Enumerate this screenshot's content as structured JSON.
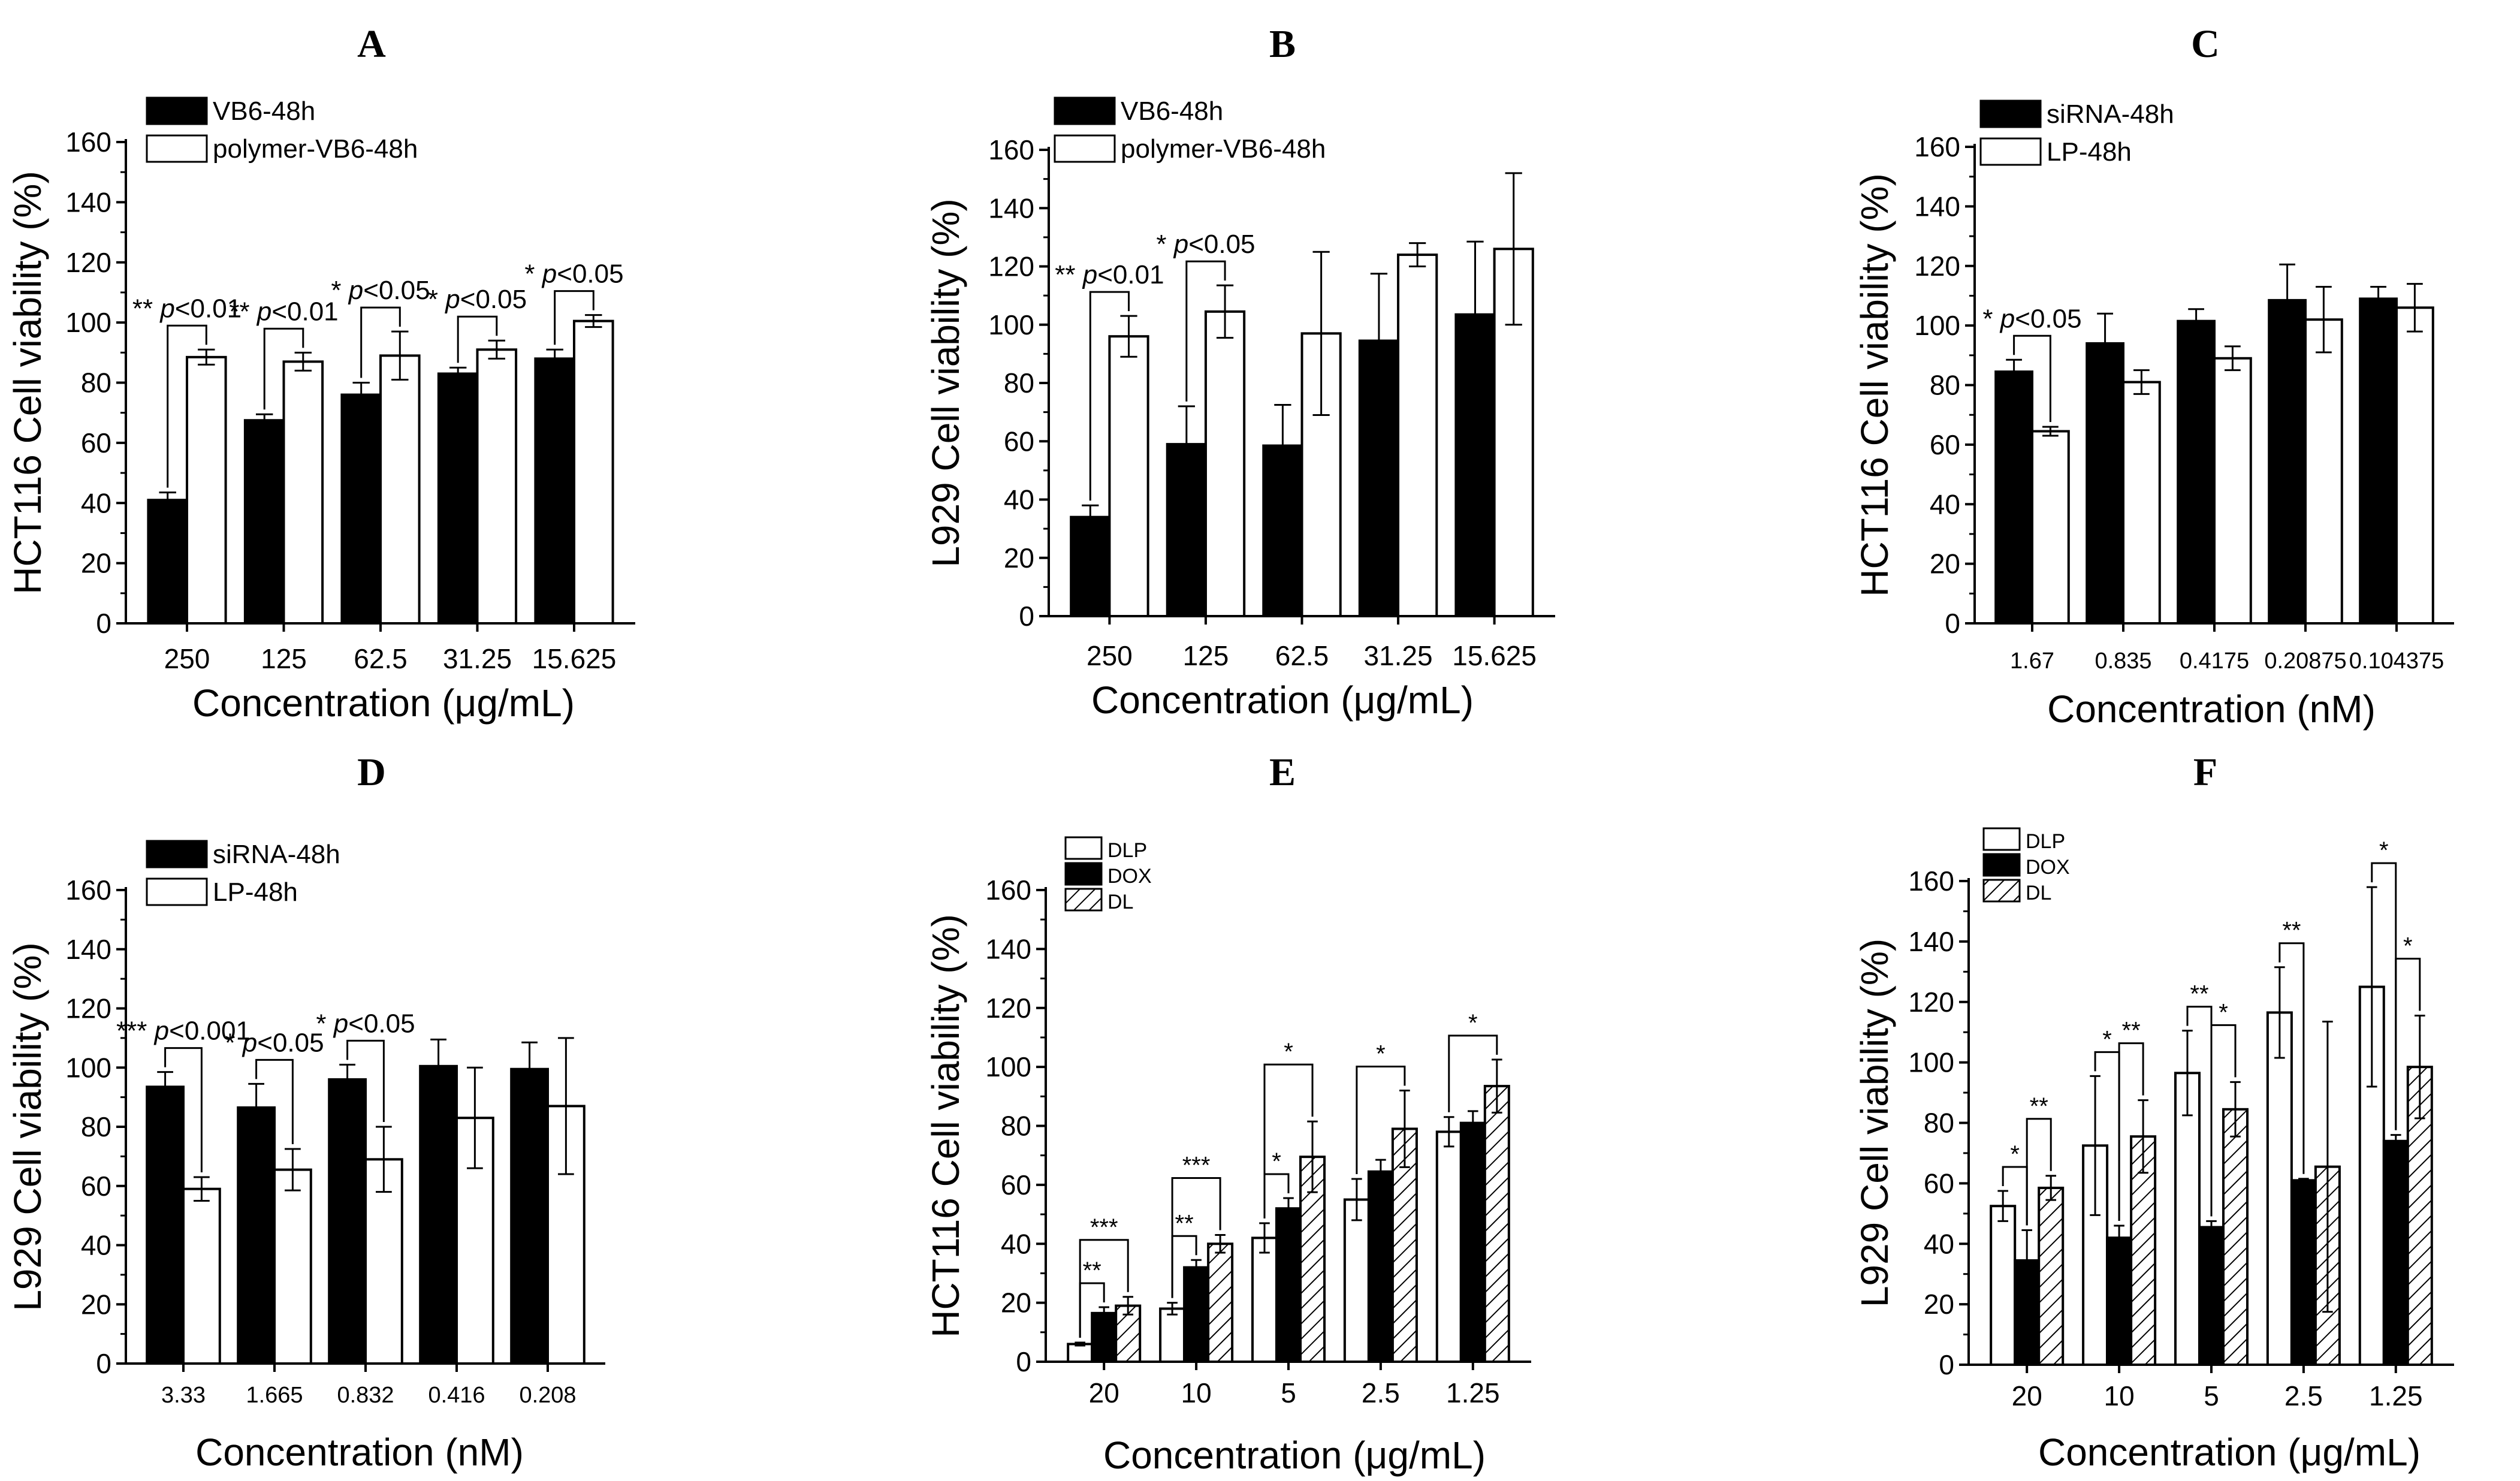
{
  "colors": {
    "black": "#000000",
    "white": "#ffffff",
    "background": "#ffffff"
  },
  "chart_data": [
    {
      "panel": "A",
      "type": "bar",
      "xlabel": "Concentration (μg/mL)",
      "ylabel": "HCT116 Cell viability (%)",
      "ylim": [
        0,
        160
      ],
      "yticks": [
        "0",
        "20",
        "40",
        "60",
        "80",
        "100",
        "120",
        "140",
        "160"
      ],
      "categories": [
        "250",
        "125",
        "62.5",
        "31.25",
        "15.625"
      ],
      "series": [
        {
          "name": "VB6-48h",
          "fill": "black",
          "values": [
            41,
            67.5,
            76,
            83,
            88
          ],
          "errors": [
            2.5,
            2,
            4,
            2,
            3
          ]
        },
        {
          "name": "polymer-VB6-48h",
          "fill": "white",
          "values": [
            88.5,
            87,
            89,
            91,
            100.5
          ],
          "errors": [
            2.5,
            3,
            8,
            3,
            2
          ]
        }
      ],
      "significance": [
        {
          "label": "** p<0.01",
          "stars": "**",
          "p": "p<0.01",
          "category": 0
        },
        {
          "label": "** p<0.01",
          "stars": "**",
          "p": "p<0.01",
          "category": 1
        },
        {
          "label": "* p<0.05",
          "stars": "*",
          "p": "p<0.05",
          "category": 2
        },
        {
          "label": "* p<0.05",
          "stars": "*",
          "p": "p<0.05",
          "category": 3
        },
        {
          "label": "* p<0.05",
          "stars": "*",
          "p": "p<0.05",
          "category": 4
        }
      ]
    },
    {
      "panel": "B",
      "type": "bar",
      "xlabel": "Concentration (μg/mL)",
      "ylabel": "L929 Cell viability (%)",
      "ylim": [
        0,
        160
      ],
      "yticks": [
        "0",
        "20",
        "40",
        "60",
        "80",
        "100",
        "120",
        "140",
        "160"
      ],
      "categories": [
        "250",
        "125",
        "62.5",
        "31.25",
        "15.625"
      ],
      "series": [
        {
          "name": "VB6-48h",
          "fill": "black",
          "values": [
            34,
            59,
            58.5,
            94.5,
            103.5
          ],
          "errors": [
            4,
            13,
            14,
            23,
            25
          ]
        },
        {
          "name": "polymer-VB6-48h",
          "fill": "white",
          "values": [
            96,
            104.5,
            97,
            124,
            126
          ],
          "errors": [
            7,
            9,
            28,
            4,
            26
          ]
        }
      ],
      "significance": [
        {
          "label": "** p<0.01",
          "stars": "**",
          "p": "p<0.01",
          "category": 0
        },
        {
          "label": "* p<0.05",
          "stars": "*",
          "p": "p<0.05",
          "category": 1
        }
      ]
    },
    {
      "panel": "C",
      "type": "bar",
      "xlabel": "Concentration (nM)",
      "ylabel": "HCT116 Cell viability (%)",
      "ylim": [
        0,
        160
      ],
      "yticks": [
        "0",
        "20",
        "40",
        "60",
        "80",
        "100",
        "120",
        "140",
        "160"
      ],
      "categories": [
        "1.67",
        "0.835",
        "0.4175",
        "0.20875",
        "0.104375"
      ],
      "series": [
        {
          "name": "siRNA-48h",
          "fill": "black",
          "values": [
            84.5,
            94,
            101.5,
            108.5,
            109
          ],
          "errors": [
            4,
            10,
            4,
            12,
            4
          ]
        },
        {
          "name": "LP-48h",
          "fill": "white",
          "values": [
            64.5,
            81,
            89,
            102,
            106
          ],
          "errors": [
            1.5,
            4,
            4,
            11,
            8
          ]
        }
      ],
      "significance": [
        {
          "label": "* p<0.05",
          "stars": "*",
          "p": "p<0.05",
          "category": 0
        }
      ]
    },
    {
      "panel": "D",
      "type": "bar",
      "xlabel": "Concentration (nM)",
      "ylabel": "L929 Cell viability (%)",
      "ylim": [
        0,
        160
      ],
      "yticks": [
        "0",
        "20",
        "40",
        "60",
        "80",
        "100",
        "120",
        "140",
        "160"
      ],
      "categories": [
        "3.33",
        "1.665",
        "0.832",
        "0.416",
        "0.208"
      ],
      "series": [
        {
          "name": "siRNA-48h",
          "fill": "black",
          "values": [
            93.5,
            86.5,
            96,
            100.5,
            99.5
          ],
          "errors": [
            5,
            8,
            5,
            9,
            9
          ]
        },
        {
          "name": "LP-48h",
          "fill": "white",
          "values": [
            59,
            65.5,
            69,
            83,
            87
          ],
          "errors": [
            4,
            7,
            11,
            17,
            23
          ]
        }
      ],
      "significance": [
        {
          "label": "*** p<0.001",
          "stars": "***",
          "p": "p<0.001",
          "category": 0
        },
        {
          "label": "* p<0.05",
          "stars": "*",
          "p": "p<0.05",
          "category": 1
        },
        {
          "label": "* p<0.05",
          "stars": "*",
          "p": "p<0.05",
          "category": 2
        }
      ]
    },
    {
      "panel": "E",
      "type": "bar",
      "xlabel": "Concentration (μg/mL)",
      "ylabel": "HCT116 Cell viability (%)",
      "ylim": [
        0,
        160
      ],
      "yticks": [
        "0",
        "20",
        "40",
        "60",
        "80",
        "100",
        "120",
        "140",
        "160"
      ],
      "categories": [
        "20",
        "10",
        "5",
        "2.5",
        "1.25"
      ],
      "series": [
        {
          "name": "DLP",
          "fill": "white",
          "values": [
            6,
            18,
            42,
            55,
            78
          ],
          "errors": [
            0.5,
            2,
            5,
            7,
            5
          ]
        },
        {
          "name": "DOX",
          "fill": "black",
          "values": [
            16.5,
            32,
            52,
            64.5,
            81
          ],
          "errors": [
            2,
            2.5,
            3.5,
            4,
            4
          ]
        },
        {
          "name": "DL",
          "fill": "hatch",
          "values": [
            19,
            40,
            69.5,
            79,
            93.5
          ],
          "errors": [
            3,
            3,
            12,
            13,
            9
          ]
        }
      ],
      "significance": [
        {
          "stars": "**",
          "category": 0,
          "pair": "DLP-DOX"
        },
        {
          "stars": "***",
          "category": 0,
          "pair": "DLP-DL"
        },
        {
          "stars": "**",
          "category": 1,
          "pair": "DLP-DOX"
        },
        {
          "stars": "***",
          "category": 1,
          "pair": "DLP-DL"
        },
        {
          "stars": "*",
          "category": 2,
          "pair": "DLP-DOX"
        },
        {
          "stars": "*",
          "category": 2,
          "pair": "DLP-DL"
        },
        {
          "stars": "*",
          "category": 3,
          "pair": "DLP-DL"
        },
        {
          "stars": "*",
          "category": 4,
          "pair": "DLP-DL"
        }
      ]
    },
    {
      "panel": "F",
      "type": "bar",
      "xlabel": "Concentration (μg/mL)",
      "ylabel": "L929 Cell viability (%)",
      "ylim": [
        0,
        160
      ],
      "yticks": [
        "0",
        "20",
        "40",
        "60",
        "80",
        "100",
        "120",
        "140",
        "160"
      ],
      "categories": [
        "20",
        "10",
        "5",
        "2.5",
        "1.25"
      ],
      "series": [
        {
          "name": "DLP",
          "fill": "white",
          "values": [
            52.5,
            72.5,
            96.5,
            116.5,
            125
          ],
          "errors": [
            5,
            23,
            14,
            15,
            33
          ]
        },
        {
          "name": "DOX",
          "fill": "black",
          "values": [
            34.5,
            42,
            45.5,
            61,
            74
          ],
          "errors": [
            10,
            4,
            2,
            0.5,
            2
          ]
        },
        {
          "name": "DL",
          "fill": "hatch",
          "values": [
            58.5,
            75.5,
            84.5,
            65.5,
            98.5
          ],
          "errors": [
            4,
            12,
            9,
            48,
            17
          ]
        }
      ],
      "significance": [
        {
          "stars": "*",
          "category": 0,
          "pair": "DLP-DOX"
        },
        {
          "stars": "**",
          "category": 0,
          "pair": "DOX-DL"
        },
        {
          "stars": "*",
          "category": 1,
          "pair": "DLP-DOX"
        },
        {
          "stars": "**",
          "category": 1,
          "pair": "DOX-DL"
        },
        {
          "stars": "**",
          "category": 2,
          "pair": "DLP-DOX"
        },
        {
          "stars": "*",
          "category": 2,
          "pair": "DOX-DL"
        },
        {
          "stars": "**",
          "category": 3,
          "pair": "DLP-DOX"
        },
        {
          "stars": "*",
          "category": 4,
          "pair": "DLP-DOX"
        },
        {
          "stars": "*",
          "category": 4,
          "pair": "DOX-DL"
        }
      ]
    }
  ]
}
